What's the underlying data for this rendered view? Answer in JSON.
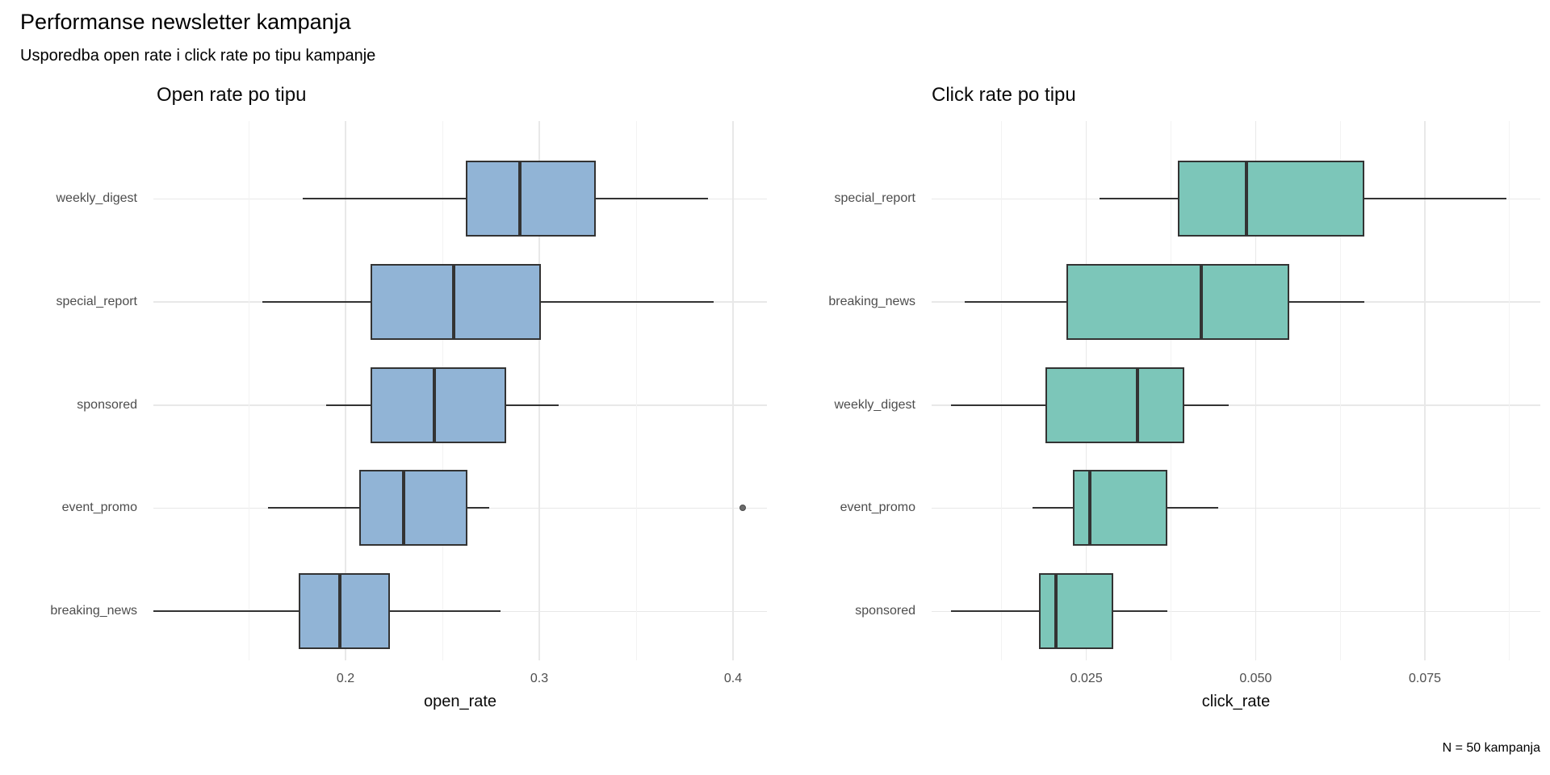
{
  "title": "Performanse newsletter kampanja",
  "subtitle": "Usporedba open rate i click rate po tipu kampanje",
  "caption": "N = 50 kampanja",
  "colors": {
    "background": "#FFFFFF",
    "open_rate_fill": "#91B4D6",
    "click_rate_fill": "#7CC6B9",
    "box_border": "#333333",
    "median_line": "#333333",
    "whisker": "#333333",
    "grid_major": "#E8E8E8",
    "grid_minor": "#F3F3F3",
    "tick_text": "#4D4D4D",
    "title_text": "#000000",
    "outlier": "#6B6B6B"
  },
  "chart_data": [
    {
      "type": "boxplot",
      "orientation": "horizontal",
      "title": "Open rate po tipu",
      "xlabel": "open_rate",
      "xlim": [
        0.1008,
        0.4175
      ],
      "xticks": [
        0.2,
        0.3,
        0.4
      ],
      "xtick_labels": [
        "0.2",
        "0.3",
        "0.4"
      ],
      "minor_ticks": [
        0.15,
        0.25,
        0.35
      ],
      "grid": true,
      "legend": "none",
      "fill": "#91B4D6",
      "categories": [
        "weekly_digest",
        "special_report",
        "sponsored",
        "event_promo",
        "breaking_news"
      ],
      "boxes": [
        {
          "category": "weekly_digest",
          "min": 0.178,
          "q1": 0.262,
          "median": 0.29,
          "q3": 0.329,
          "max": 0.387,
          "outliers": []
        },
        {
          "category": "special_report",
          "min": 0.157,
          "q1": 0.213,
          "median": 0.256,
          "q3": 0.301,
          "max": 0.39,
          "outliers": []
        },
        {
          "category": "sponsored",
          "min": 0.19,
          "q1": 0.213,
          "median": 0.246,
          "q3": 0.283,
          "max": 0.31,
          "outliers": []
        },
        {
          "category": "event_promo",
          "min": 0.16,
          "q1": 0.207,
          "median": 0.23,
          "q3": 0.263,
          "max": 0.274,
          "outliers": [
            0.405
          ]
        },
        {
          "category": "breaking_news",
          "min": 0.101,
          "q1": 0.176,
          "median": 0.197,
          "q3": 0.223,
          "max": 0.28,
          "outliers": []
        }
      ]
    },
    {
      "type": "boxplot",
      "orientation": "horizontal",
      "title": "Click rate po tipu",
      "xlabel": "click_rate",
      "xlim": [
        0.00214,
        0.09205
      ],
      "xticks": [
        0.025,
        0.05,
        0.075
      ],
      "xtick_labels": [
        "0.025",
        "0.050",
        "0.075"
      ],
      "minor_ticks": [
        0.0125,
        0.0375,
        0.0625,
        0.0875
      ],
      "grid": true,
      "legend": "none",
      "fill": "#7CC6B9",
      "categories": [
        "special_report",
        "breaking_news",
        "weekly_digest",
        "event_promo",
        "sponsored"
      ],
      "boxes": [
        {
          "category": "special_report",
          "min": 0.027,
          "q1": 0.0385,
          "median": 0.0487,
          "q3": 0.066,
          "max": 0.087,
          "outliers": []
        },
        {
          "category": "breaking_news",
          "min": 0.007,
          "q1": 0.022,
          "median": 0.042,
          "q3": 0.055,
          "max": 0.066,
          "outliers": []
        },
        {
          "category": "weekly_digest",
          "min": 0.005,
          "q1": 0.019,
          "median": 0.0325,
          "q3": 0.0395,
          "max": 0.046,
          "outliers": []
        },
        {
          "category": "event_promo",
          "min": 0.017,
          "q1": 0.023,
          "median": 0.0255,
          "q3": 0.037,
          "max": 0.0445,
          "outliers": []
        },
        {
          "category": "sponsored",
          "min": 0.005,
          "q1": 0.018,
          "median": 0.0205,
          "q3": 0.029,
          "max": 0.037,
          "outliers": []
        }
      ]
    }
  ]
}
